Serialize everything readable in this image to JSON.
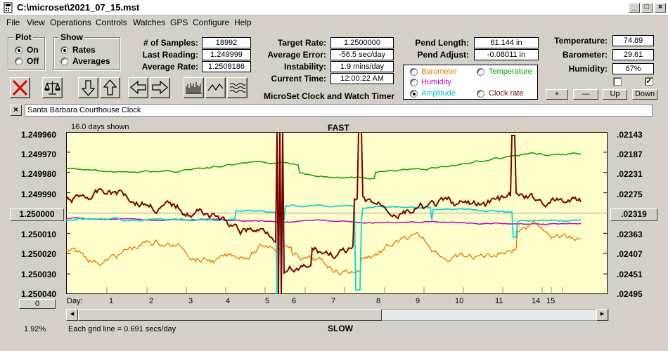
{
  "window": {
    "title": "C:\\microset\\2021_07_15.mst"
  },
  "menu": [
    "File",
    "View",
    "Operations",
    "Controls",
    "Watches",
    "GPS",
    "Configure",
    "Help"
  ],
  "plot_group": {
    "title": "Plot",
    "options": [
      "On",
      "Off"
    ],
    "selected": "On"
  },
  "show_group": {
    "title": "Show",
    "options": [
      "Rates",
      "Averages"
    ],
    "selected": "Rates"
  },
  "stats": {
    "samples_label": "# of Samples:",
    "samples": "18992",
    "last_label": "Last Reading:",
    "last": "1.249999",
    "avgrate_label": "Average Rate:",
    "avgrate": "1.2508186"
  },
  "targets": {
    "target_label": "Target Rate:",
    "target": "1.2500000",
    "error_label": "Average Error:",
    "error": "-56.5 sec/day",
    "instab_label": "Instability:",
    "instab": "1.9 mins/day",
    "time_label": "Current Time:",
    "time": "12:00:22 AM"
  },
  "pend": {
    "length_label": "Pend Length:",
    "length": "61.144 in",
    "adjust_label": "Pend Adjust:",
    "adjust": "-0.08011 in"
  },
  "env": {
    "temp_label": "Temperature:",
    "temp": "74.89",
    "baro_label": "Barometer:",
    "baro": "29.61",
    "hum_label": "Humidity:",
    "hum": "67%"
  },
  "subtitle": "MicroSet Clock and Watch Timer",
  "sensors": [
    {
      "label": "Barometer",
      "color": "#e07800",
      "selected": false
    },
    {
      "label": "Temperature",
      "color": "#00a000",
      "selected": false
    },
    {
      "label": "Humidity",
      "color": "#c000c0",
      "selected": false
    },
    {
      "label": "Amplitude",
      "color": "#00c8c8",
      "selected": true
    },
    {
      "label": "Clock rate",
      "color": "#800000",
      "selected": false
    }
  ],
  "adjust_buttons": [
    "+",
    "—",
    "Up",
    "Down"
  ],
  "clock_name": "Santa Barbara Courthouse Clock",
  "plot": {
    "days_shown": "16.0 days shown",
    "top_label": "FAST",
    "bottom_label": "SLOW",
    "left_ticks": [
      "1.249960",
      "1.249970",
      "1.249980",
      "1.249990",
      "1.250000",
      "1.250010",
      "1.250020",
      "1.250030",
      "1.250040"
    ],
    "right_ticks": [
      ".02143",
      ".02187",
      ".02231",
      ".02275",
      ".02319",
      ".02363",
      ".02407",
      ".02451",
      ".02495"
    ],
    "day_prefix": "Day:",
    "days": [
      "1",
      "2",
      "3",
      "4",
      "5",
      "6",
      "7",
      "8",
      "9",
      "10",
      "11",
      "14",
      "15"
    ],
    "scroll_value": "0",
    "percent": "1.92%",
    "grid_note": "Each grid line = 0.691 secs/day"
  }
}
